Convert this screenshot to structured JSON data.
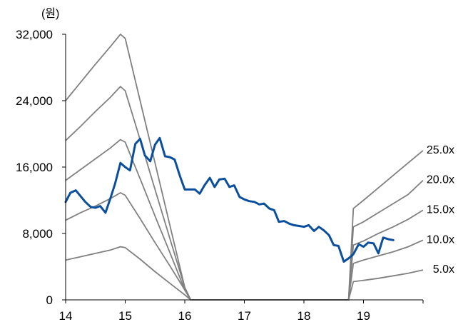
{
  "chart_data": {
    "type": "line",
    "title": "",
    "ylabel": "(원)",
    "xlabel": "",
    "ylim": [
      0,
      32000
    ],
    "xlim": [
      2014,
      2020
    ],
    "y_ticks": [
      0,
      8000,
      16000,
      24000,
      32000
    ],
    "y_tick_labels": [
      "0",
      "8,000",
      "16,000",
      "24,000",
      "32,000"
    ],
    "x_ticks": [
      2014,
      2015,
      2016,
      2017,
      2018,
      2019
    ],
    "x_tick_labels": [
      "14",
      "15",
      "16",
      "17",
      "18",
      "19"
    ],
    "grid": false,
    "legend": "none",
    "colors": {
      "price": "#0b4f9c",
      "bands": "#808080",
      "axis": "#000000"
    },
    "price": {
      "x": [
        2014.0,
        2014.08,
        2014.17,
        2014.25,
        2014.33,
        2014.42,
        2014.5,
        2014.58,
        2014.67,
        2014.75,
        2014.83,
        2014.92,
        2015.0,
        2015.08,
        2015.17,
        2015.25,
        2015.33,
        2015.42,
        2015.5,
        2015.58,
        2015.67,
        2015.75,
        2015.83,
        2015.92,
        2016.0,
        2016.08,
        2016.17,
        2016.25,
        2016.33,
        2016.42,
        2016.5,
        2016.58,
        2016.67,
        2016.75,
        2016.83,
        2016.92,
        2017.0,
        2017.08,
        2017.17,
        2017.25,
        2017.33,
        2017.42,
        2017.5,
        2017.58,
        2017.67,
        2017.75,
        2017.83,
        2017.92,
        2018.0,
        2018.08,
        2018.17,
        2018.25,
        2018.33,
        2018.42,
        2018.5,
        2018.58,
        2018.67,
        2018.75,
        2018.83,
        2018.92,
        2019.0,
        2019.08,
        2019.17,
        2019.25,
        2019.33,
        2019.42,
        2019.5
      ],
      "y": [
        11800,
        12900,
        13200,
        12500,
        11800,
        11200,
        11100,
        11300,
        10500,
        12200,
        14000,
        16500,
        16000,
        15600,
        18800,
        19400,
        17400,
        16700,
        18700,
        19500,
        17300,
        17200,
        16900,
        14900,
        13300,
        13300,
        13300,
        12800,
        13800,
        14700,
        13600,
        14500,
        14600,
        13600,
        13800,
        12400,
        12100,
        11900,
        11800,
        11500,
        11600,
        11000,
        10800,
        9400,
        9500,
        9200,
        9000,
        8900,
        8800,
        9000,
        8300,
        8800,
        8400,
        7800,
        6600,
        6500,
        4600,
        5000,
        5500,
        6700,
        6400,
        6900,
        6800,
        5600,
        7500,
        7300,
        7200
      ]
    },
    "series": [
      {
        "name": "25.0x",
        "x": [
          2014.0,
          2014.25,
          2014.5,
          2014.75,
          2014.92,
          2015.0,
          2015.25,
          2015.5,
          2015.75,
          2016.0,
          2016.1,
          2018.75,
          2018.83,
          2019.0,
          2019.25,
          2019.5,
          2019.75,
          2020.0
        ],
        "y": [
          24000,
          26200,
          28400,
          30500,
          32000,
          31500,
          24000,
          16500,
          9000,
          1500,
          0,
          0,
          11000,
          12000,
          13500,
          15000,
          16500,
          18000
        ]
      },
      {
        "name": "20.0x",
        "x": [
          2014.0,
          2014.25,
          2014.5,
          2014.75,
          2014.92,
          2015.0,
          2015.25,
          2015.5,
          2015.75,
          2016.0,
          2016.1,
          2018.75,
          2018.83,
          2019.0,
          2019.25,
          2019.5,
          2019.75,
          2020.0
        ],
        "y": [
          19200,
          20900,
          22700,
          24400,
          25700,
          25200,
          19300,
          13300,
          7400,
          1500,
          0,
          0,
          8800,
          9400,
          10500,
          11600,
          12700,
          14400
        ]
      },
      {
        "name": "15.0x",
        "x": [
          2014.0,
          2014.25,
          2014.5,
          2014.75,
          2014.92,
          2015.0,
          2015.25,
          2015.5,
          2015.75,
          2016.0,
          2016.1,
          2018.75,
          2018.83,
          2019.0,
          2019.25,
          2019.5,
          2019.75,
          2020.0
        ],
        "y": [
          14400,
          15700,
          17000,
          18300,
          19300,
          19000,
          14600,
          10100,
          5700,
          1200,
          0,
          0,
          6600,
          7100,
          8000,
          8800,
          9700,
          10800
        ]
      },
      {
        "name": "10.0x",
        "x": [
          2014.0,
          2014.25,
          2014.5,
          2014.75,
          2014.92,
          2015.0,
          2015.25,
          2015.5,
          2015.75,
          2016.0,
          2016.1,
          2018.75,
          2018.83,
          2019.0,
          2019.25,
          2019.5,
          2019.75,
          2020.0
        ],
        "y": [
          9600,
          10500,
          11300,
          12200,
          12900,
          12600,
          9800,
          6900,
          4100,
          1200,
          0,
          0,
          4400,
          4800,
          5300,
          5800,
          6400,
          7200
        ]
      },
      {
        "name": "5.0x",
        "x": [
          2014.0,
          2014.25,
          2014.5,
          2014.75,
          2014.92,
          2015.0,
          2015.25,
          2015.5,
          2015.75,
          2016.0,
          2016.1,
          2018.75,
          2018.83,
          2019.0,
          2019.25,
          2019.5,
          2019.75,
          2020.0
        ],
        "y": [
          4800,
          5200,
          5600,
          6000,
          6400,
          6300,
          4900,
          3400,
          2000,
          600,
          0,
          0,
          2200,
          2350,
          2600,
          2900,
          3200,
          3600
        ]
      }
    ]
  }
}
